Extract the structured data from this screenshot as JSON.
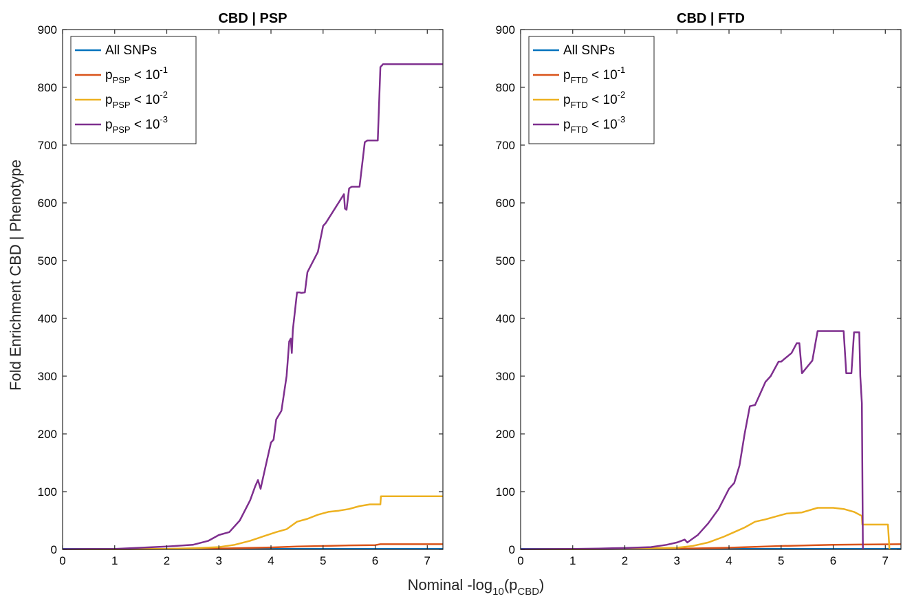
{
  "ylabel": "Fold Enrichment CBD | Phenotype",
  "xlabel": {
    "main": "Nominal -log",
    "sub1": "10",
    "mid": "(p",
    "sub2": "CBD",
    "end": ")"
  },
  "colors": {
    "all_snps": "#0072BD",
    "p1": "#D95319",
    "p2": "#EDB120",
    "p3": "#7E2F8E"
  },
  "chart_data": [
    {
      "type": "line",
      "title": "CBD | PSP",
      "xlim": [
        0,
        7.3
      ],
      "ylim": [
        0,
        900
      ],
      "xticks": [
        0,
        1,
        2,
        3,
        4,
        5,
        6,
        7
      ],
      "yticks": [
        0,
        100,
        200,
        300,
        400,
        500,
        600,
        700,
        800,
        900
      ],
      "legend_position": "top-left",
      "legend": [
        {
          "key": "all_snps",
          "text": "All SNPs",
          "p": "",
          "sub": "",
          "rest": "",
          "exp": ""
        },
        {
          "key": "p1",
          "text": "",
          "p": "p",
          "sub": "PSP",
          "rest": " < 10",
          "exp": "-1"
        },
        {
          "key": "p2",
          "text": "",
          "p": "p",
          "sub": "PSP",
          "rest": " < 10",
          "exp": "-2"
        },
        {
          "key": "p3",
          "text": "",
          "p": "p",
          "sub": "PSP",
          "rest": " < 10",
          "exp": "-3"
        }
      ],
      "series": [
        {
          "key": "all_snps",
          "x": [
            0,
            7.3
          ],
          "y": [
            1,
            1
          ]
        },
        {
          "key": "p1",
          "x": [
            0,
            1,
            2,
            3,
            3.5,
            4,
            4.5,
            5,
            5.5,
            6,
            6.1,
            7.3
          ],
          "y": [
            0.3,
            0.5,
            0.8,
            1.5,
            2.5,
            3.5,
            5,
            6,
            7,
            7.5,
            9,
            9
          ]
        },
        {
          "key": "p2",
          "x": [
            0,
            1,
            2,
            2.5,
            3,
            3.3,
            3.6,
            3.9,
            4.1,
            4.3,
            4.5,
            4.7,
            4.9,
            5.1,
            5.3,
            5.5,
            5.7,
            5.9,
            6.1,
            6.11,
            7.3
          ],
          "y": [
            0.2,
            0.5,
            1,
            2,
            4,
            8,
            15,
            24,
            30,
            35,
            48,
            53,
            60,
            65,
            67,
            70,
            75,
            78,
            78,
            92,
            92
          ]
        },
        {
          "key": "p3",
          "x": [
            0,
            1,
            1.5,
            2,
            2.5,
            2.8,
            3.0,
            3.2,
            3.4,
            3.6,
            3.7,
            3.75,
            3.8,
            3.9,
            4.0,
            4.05,
            4.1,
            4.2,
            4.3,
            4.35,
            4.38,
            4.4,
            4.42,
            4.5,
            4.55,
            4.58,
            4.65,
            4.7,
            4.9,
            5.0,
            5.05,
            5.4,
            5.42,
            5.45,
            5.5,
            5.55,
            5.7,
            5.8,
            5.85,
            6.05,
            6.1,
            6.15,
            7.3
          ],
          "y": [
            0.5,
            1,
            3,
            5,
            8,
            15,
            25,
            30,
            50,
            85,
            110,
            120,
            105,
            145,
            185,
            190,
            225,
            240,
            300,
            360,
            365,
            340,
            380,
            445,
            445,
            444,
            445,
            480,
            515,
            560,
            565,
            615,
            590,
            588,
            625,
            628,
            628,
            705,
            708,
            708,
            835,
            840,
            840
          ]
        }
      ]
    },
    {
      "type": "line",
      "title": "CBD | FTD",
      "xlim": [
        0,
        7.3
      ],
      "ylim": [
        0,
        900
      ],
      "xticks": [
        0,
        1,
        2,
        3,
        4,
        5,
        6,
        7
      ],
      "yticks": [
        0,
        100,
        200,
        300,
        400,
        500,
        600,
        700,
        800,
        900
      ],
      "legend_position": "top-left",
      "legend": [
        {
          "key": "all_snps",
          "text": "All SNPs",
          "p": "",
          "sub": "",
          "rest": "",
          "exp": ""
        },
        {
          "key": "p1",
          "text": "",
          "p": "p",
          "sub": "FTD",
          "rest": " < 10",
          "exp": "-1"
        },
        {
          "key": "p2",
          "text": "",
          "p": "p",
          "sub": "FTD",
          "rest": " < 10",
          "exp": "-2"
        },
        {
          "key": "p3",
          "text": "",
          "p": "p",
          "sub": "FTD",
          "rest": " < 10",
          "exp": "-3"
        }
      ],
      "series": [
        {
          "key": "all_snps",
          "x": [
            0,
            7.3
          ],
          "y": [
            1,
            1
          ]
        },
        {
          "key": "p1",
          "x": [
            0,
            1,
            2,
            3,
            3.5,
            4,
            4.5,
            5,
            5.5,
            6,
            6.5,
            7.3
          ],
          "y": [
            0.3,
            0.5,
            0.8,
            1.2,
            2,
            3,
            4.5,
            6,
            7,
            8,
            8.5,
            9
          ]
        },
        {
          "key": "p2",
          "x": [
            0,
            1,
            2,
            2.5,
            3,
            3.3,
            3.6,
            3.9,
            4.1,
            4.3,
            4.5,
            4.7,
            4.9,
            5.1,
            5.4,
            5.7,
            6.0,
            6.2,
            6.4,
            6.55,
            6.56,
            7.05,
            7.08
          ],
          "y": [
            0.2,
            0.5,
            1,
            2,
            3,
            6,
            12,
            22,
            30,
            38,
            48,
            52,
            57,
            62,
            64,
            72,
            72,
            70,
            65,
            58,
            43,
            43,
            0
          ]
        },
        {
          "key": "p3",
          "x": [
            0,
            1,
            1.5,
            2,
            2.5,
            2.8,
            3.0,
            3.15,
            3.2,
            3.4,
            3.6,
            3.8,
            4.0,
            4.1,
            4.2,
            4.3,
            4.4,
            4.5,
            4.6,
            4.7,
            4.8,
            4.95,
            5.0,
            5.2,
            5.3,
            5.35,
            5.4,
            5.6,
            5.7,
            6.2,
            6.25,
            6.35,
            6.4,
            6.5,
            6.52,
            6.55,
            6.57
          ],
          "y": [
            0.3,
            0.8,
            1.5,
            2.5,
            4,
            8,
            12,
            17,
            12,
            25,
            45,
            70,
            105,
            115,
            145,
            200,
            248,
            250,
            270,
            290,
            300,
            325,
            325,
            340,
            357,
            357,
            305,
            327,
            378,
            378,
            305,
            305,
            376,
            376,
            300,
            253,
            0
          ]
        }
      ]
    }
  ]
}
